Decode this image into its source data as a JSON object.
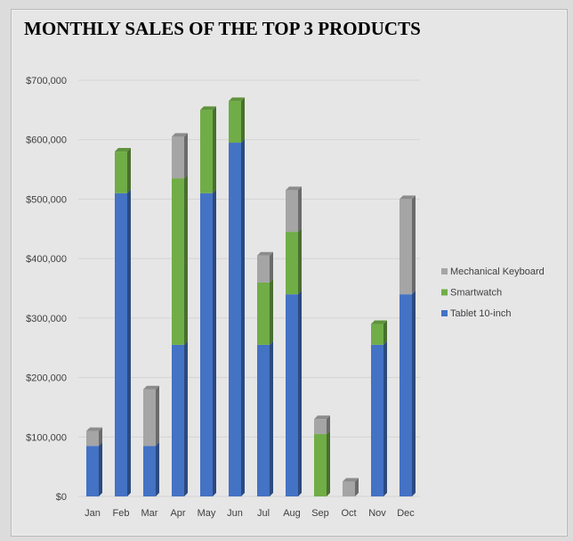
{
  "chart_data": {
    "type": "bar",
    "stacked": true,
    "title": "MONTHLY SALES OF THE TOP 3 PRODUCTS",
    "categories": [
      "Jan",
      "Feb",
      "Mar",
      "Apr",
      "May",
      "Jun",
      "Jul",
      "Aug",
      "Sep",
      "Oct",
      "Nov",
      "Dec"
    ],
    "series": [
      {
        "name": "Tablet 10-inch",
        "color": "#4472c4",
        "values": [
          85000,
          510000,
          85000,
          255000,
          510000,
          595000,
          255000,
          340000,
          0,
          0,
          255000,
          340000
        ]
      },
      {
        "name": "Smartwatch",
        "color": "#70ad47",
        "values": [
          0,
          70000,
          0,
          280000,
          140000,
          70000,
          105000,
          105000,
          105000,
          0,
          35000,
          0
        ]
      },
      {
        "name": "Mechanical Keyboard",
        "color": "#a5a5a5",
        "values": [
          25000,
          0,
          95000,
          70000,
          0,
          0,
          45000,
          70000,
          25000,
          25000,
          0,
          160000
        ]
      }
    ],
    "ylim": [
      0,
      700000
    ],
    "yticks": [
      0,
      100000,
      200000,
      300000,
      400000,
      500000,
      600000,
      700000
    ],
    "ytick_labels": [
      "$0",
      "$100,000",
      "$200,000",
      "$300,000",
      "$400,000",
      "$500,000",
      "$600,000",
      "$700,000"
    ],
    "grid": true,
    "legend_position": "right",
    "legend_order": [
      "Mechanical Keyboard",
      "Smartwatch",
      "Tablet 10-inch"
    ]
  }
}
